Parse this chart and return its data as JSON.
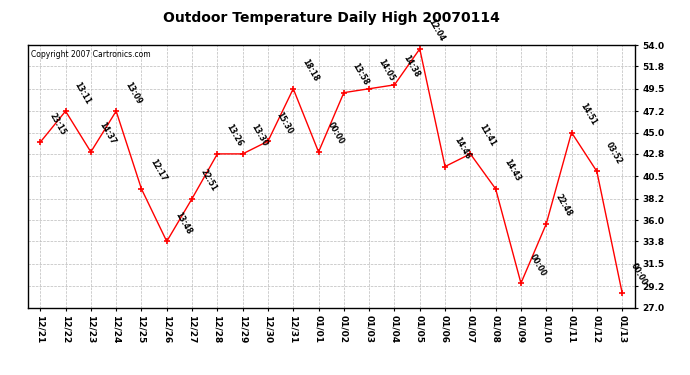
{
  "title": "Outdoor Temperature Daily High 20070114",
  "copyright": "Copyright 2007 Cartronics.com",
  "x_labels": [
    "12/21",
    "12/22",
    "12/23",
    "12/24",
    "12/25",
    "12/26",
    "12/27",
    "12/28",
    "12/29",
    "12/30",
    "12/31",
    "01/01",
    "01/02",
    "01/03",
    "01/04",
    "01/05",
    "01/06",
    "01/07",
    "01/08",
    "01/09",
    "01/10",
    "01/11",
    "01/12",
    "01/13"
  ],
  "y_values": [
    44.0,
    47.2,
    43.0,
    47.2,
    39.2,
    33.8,
    38.2,
    42.8,
    42.8,
    44.1,
    49.5,
    43.0,
    49.1,
    49.5,
    49.9,
    53.6,
    41.5,
    42.8,
    39.2,
    29.5,
    35.6,
    45.0,
    41.0,
    28.5
  ],
  "point_labels": [
    "23:15",
    "13:11",
    "14:37",
    "13:09",
    "12:17",
    "13:48",
    "22:51",
    "13:26",
    "13:30",
    "15:30",
    "18:18",
    "00:00",
    "13:58",
    "14:05",
    "14:38",
    "12:04",
    "14:46",
    "11:41",
    "14:43",
    "00:00",
    "22:48",
    "14:51",
    "03:52",
    "00:00"
  ],
  "ylim_min": 27.0,
  "ylim_max": 54.0,
  "y_ticks": [
    27.0,
    29.2,
    31.5,
    33.8,
    36.0,
    38.2,
    40.5,
    42.8,
    45.0,
    47.2,
    49.5,
    51.8,
    54.0
  ],
  "line_color": "red",
  "marker_color": "red",
  "marker": "+",
  "background_color": "white",
  "grid_color": "#bbbbbb",
  "title_fontsize": 10,
  "tick_fontsize": 6.5,
  "annotation_fontsize": 5.5
}
